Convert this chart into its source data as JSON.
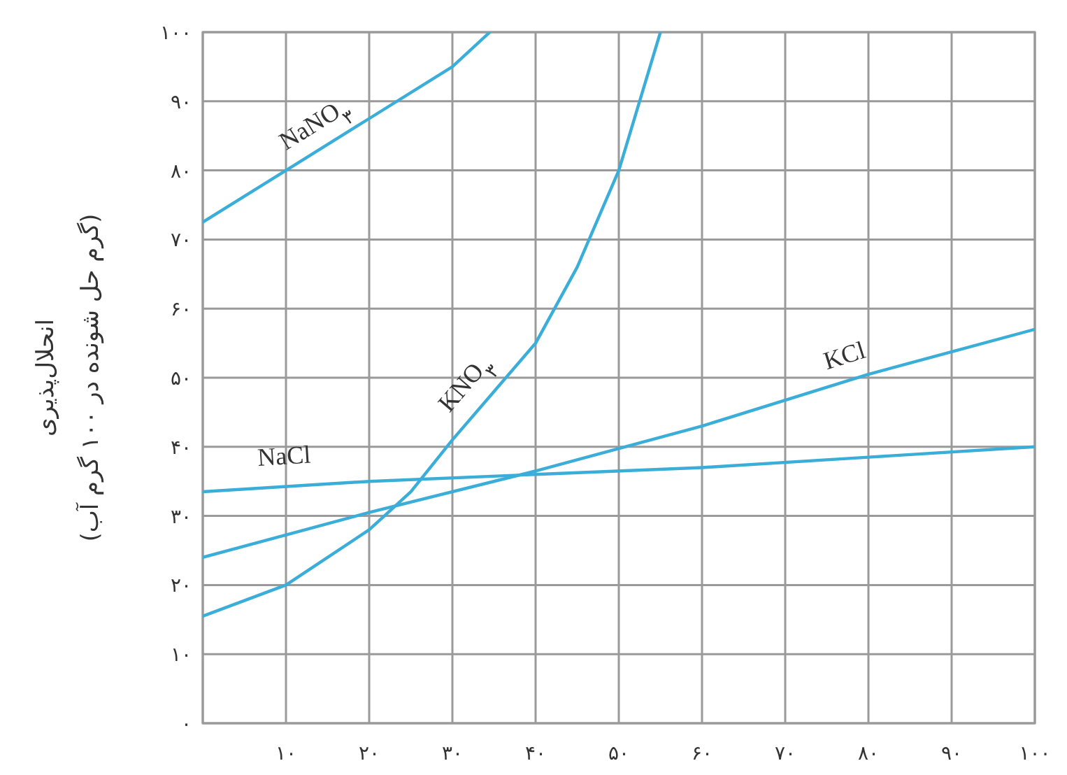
{
  "chart_data": {
    "type": "line",
    "ylabel": "انحلال‌پذیری\n(گرم حل شونده در ۱۰۰ گرم آب)",
    "xlim": [
      0,
      100
    ],
    "ylim": [
      0,
      100
    ],
    "xticks": [
      {
        "value": 0,
        "label": null
      },
      {
        "value": 10,
        "label": "۱۰"
      },
      {
        "value": 20,
        "label": "۲۰"
      },
      {
        "value": 30,
        "label": "۳۰"
      },
      {
        "value": 40,
        "label": "۴۰"
      },
      {
        "value": 50,
        "label": "۵۰"
      },
      {
        "value": 60,
        "label": "۶۰"
      },
      {
        "value": 70,
        "label": "۷۰"
      },
      {
        "value": 80,
        "label": "۸۰"
      },
      {
        "value": 90,
        "label": "۹۰"
      },
      {
        "value": 100,
        "label": "۱۰۰"
      }
    ],
    "yticks": [
      {
        "value": 0,
        "label": "۰"
      },
      {
        "value": 10,
        "label": "۱۰"
      },
      {
        "value": 20,
        "label": "۲۰"
      },
      {
        "value": 30,
        "label": "۳۰"
      },
      {
        "value": 40,
        "label": "۴۰"
      },
      {
        "value": 50,
        "label": "۵۰"
      },
      {
        "value": 60,
        "label": "۶۰"
      },
      {
        "value": 70,
        "label": "۷۰"
      },
      {
        "value": 80,
        "label": "۸۰"
      },
      {
        "value": 90,
        "label": "۹۰"
      },
      {
        "value": 100,
        "label": "۱۰۰"
      }
    ],
    "grid": true,
    "marker": "none",
    "line_style": "solid",
    "series": [
      {
        "name": "NaNO$_{۳}$",
        "color": "#3aaed8",
        "x": [
          0,
          10,
          20,
          30,
          34.5
        ],
        "values": [
          72.5,
          80,
          87.5,
          95,
          100
        ]
      },
      {
        "name": "KNO$_{۳}$",
        "color": "#3aaed8",
        "x": [
          0,
          10,
          20,
          25,
          30,
          35,
          40,
          45,
          50,
          55
        ],
        "values": [
          15.5,
          20,
          28,
          33.5,
          41,
          48,
          55,
          66,
          80,
          100
        ]
      },
      {
        "name": "KCl",
        "color": "#3aaed8",
        "x": [
          0,
          20,
          40,
          60,
          80,
          100
        ],
        "values": [
          24,
          30.5,
          36.5,
          43,
          50.5,
          57
        ]
      },
      {
        "name": "NaCl",
        "color": "#3aaed8",
        "x": [
          0,
          20,
          40,
          60,
          80,
          100
        ],
        "values": [
          33.5,
          35,
          36,
          37,
          38.5,
          40
        ]
      }
    ]
  }
}
